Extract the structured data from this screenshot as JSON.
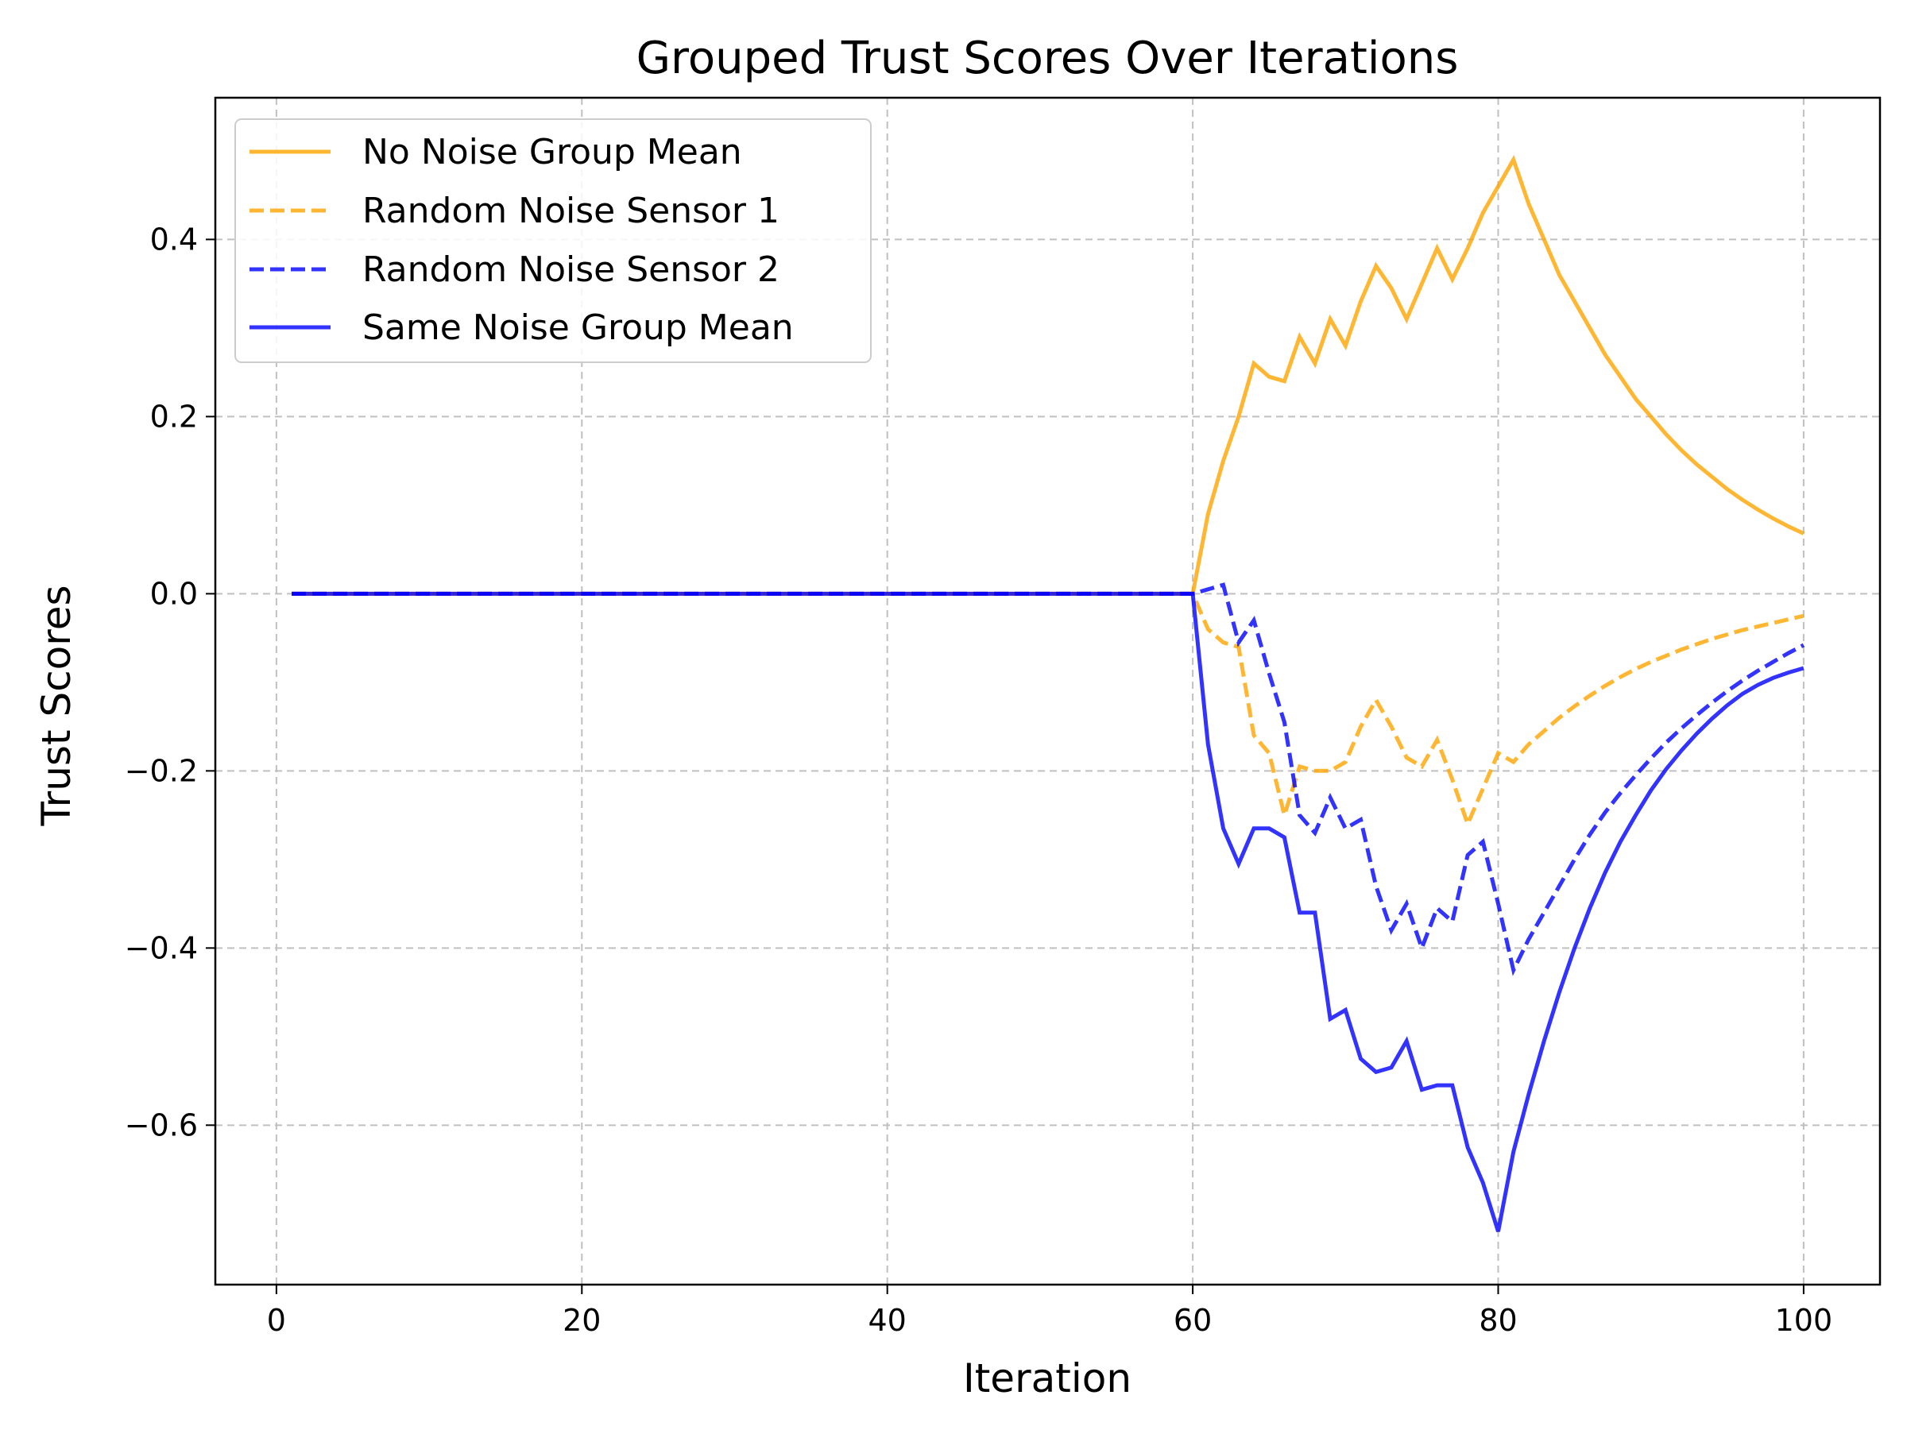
{
  "chart_data": {
    "type": "line",
    "title": "Grouped Trust Scores Over Iterations",
    "xlabel": "Iteration",
    "ylabel": "Trust Scores",
    "xlim": [
      -4,
      105
    ],
    "ylim": [
      -0.78,
      0.56
    ],
    "xticks": [
      0,
      20,
      40,
      60,
      80,
      100
    ],
    "xtick_labels": [
      "0",
      "20",
      "40",
      "60",
      "80",
      "100"
    ],
    "yticks": [
      -0.6,
      -0.4,
      -0.2,
      0.0,
      0.2,
      0.4
    ],
    "ytick_labels": [
      "−0.6",
      "−0.4",
      "−0.2",
      "0.0",
      "0.2",
      "0.4"
    ],
    "grid": true,
    "legend_position": "top-left",
    "series": [
      {
        "name": "No Noise Group Mean",
        "color": "#FFA500",
        "dashed": false,
        "points": [
          [
            1,
            0
          ],
          [
            60,
            0
          ],
          [
            61,
            0.09
          ],
          [
            62,
            0.15
          ],
          [
            63,
            0.2
          ],
          [
            64,
            0.26
          ],
          [
            65,
            0.245
          ],
          [
            66,
            0.24
          ],
          [
            67,
            0.29
          ],
          [
            68,
            0.26
          ],
          [
            69,
            0.31
          ],
          [
            70,
            0.28
          ],
          [
            71,
            0.33
          ],
          [
            72,
            0.37
          ],
          [
            73,
            0.345
          ],
          [
            74,
            0.31
          ],
          [
            75,
            0.35
          ],
          [
            76,
            0.39
          ],
          [
            77,
            0.355
          ],
          [
            78,
            0.39
          ],
          [
            79,
            0.43
          ],
          [
            80,
            0.46
          ],
          [
            81,
            0.49
          ],
          [
            82,
            0.44
          ],
          [
            83,
            0.4
          ],
          [
            84,
            0.36
          ],
          [
            85,
            0.33
          ],
          [
            86,
            0.3
          ],
          [
            87,
            0.27
          ],
          [
            88,
            0.245
          ],
          [
            89,
            0.22
          ],
          [
            90,
            0.2
          ],
          [
            91,
            0.18
          ],
          [
            92,
            0.162
          ],
          [
            93,
            0.146
          ],
          [
            94,
            0.132
          ],
          [
            95,
            0.118
          ],
          [
            96,
            0.106
          ],
          [
            97,
            0.095
          ],
          [
            98,
            0.085
          ],
          [
            99,
            0.076
          ],
          [
            100,
            0.068
          ]
        ]
      },
      {
        "name": "Random Noise Sensor 1",
        "color": "#FFA500",
        "dashed": true,
        "points": [
          [
            1,
            0
          ],
          [
            60,
            0
          ],
          [
            61,
            -0.04
          ],
          [
            62,
            -0.055
          ],
          [
            63,
            -0.06
          ],
          [
            64,
            -0.16
          ],
          [
            65,
            -0.18
          ],
          [
            66,
            -0.25
          ],
          [
            67,
            -0.195
          ],
          [
            68,
            -0.2
          ],
          [
            69,
            -0.2
          ],
          [
            70,
            -0.19
          ],
          [
            71,
            -0.15
          ],
          [
            72,
            -0.12
          ],
          [
            73,
            -0.15
          ],
          [
            74,
            -0.185
          ],
          [
            75,
            -0.195
          ],
          [
            76,
            -0.165
          ],
          [
            77,
            -0.21
          ],
          [
            78,
            -0.26
          ],
          [
            79,
            -0.22
          ],
          [
            80,
            -0.18
          ],
          [
            81,
            -0.19
          ],
          [
            82,
            -0.17
          ],
          [
            83,
            -0.155
          ],
          [
            84,
            -0.14
          ],
          [
            85,
            -0.127
          ],
          [
            86,
            -0.115
          ],
          [
            87,
            -0.104
          ],
          [
            88,
            -0.094
          ],
          [
            89,
            -0.085
          ],
          [
            90,
            -0.077
          ],
          [
            91,
            -0.07
          ],
          [
            92,
            -0.063
          ],
          [
            93,
            -0.057
          ],
          [
            94,
            -0.051
          ],
          [
            95,
            -0.046
          ],
          [
            96,
            -0.041
          ],
          [
            97,
            -0.037
          ],
          [
            98,
            -0.033
          ],
          [
            99,
            -0.029
          ],
          [
            100,
            -0.025
          ]
        ]
      },
      {
        "name": "Random Noise Sensor 2",
        "color": "#0000FF",
        "dashed": true,
        "points": [
          [
            1,
            0
          ],
          [
            60,
            0
          ],
          [
            61,
            0.005
          ],
          [
            62,
            0.01
          ],
          [
            63,
            -0.055
          ],
          [
            64,
            -0.03
          ],
          [
            65,
            -0.09
          ],
          [
            66,
            -0.145
          ],
          [
            67,
            -0.25
          ],
          [
            68,
            -0.27
          ],
          [
            69,
            -0.23
          ],
          [
            70,
            -0.265
          ],
          [
            71,
            -0.255
          ],
          [
            72,
            -0.33
          ],
          [
            73,
            -0.38
          ],
          [
            74,
            -0.35
          ],
          [
            75,
            -0.4
          ],
          [
            76,
            -0.355
          ],
          [
            77,
            -0.37
          ],
          [
            78,
            -0.295
          ],
          [
            79,
            -0.28
          ],
          [
            80,
            -0.35
          ],
          [
            81,
            -0.425
          ],
          [
            82,
            -0.39
          ],
          [
            83,
            -0.36
          ],
          [
            84,
            -0.33
          ],
          [
            85,
            -0.3
          ],
          [
            86,
            -0.272
          ],
          [
            87,
            -0.247
          ],
          [
            88,
            -0.225
          ],
          [
            89,
            -0.205
          ],
          [
            90,
            -0.186
          ],
          [
            91,
            -0.168
          ],
          [
            92,
            -0.152
          ],
          [
            93,
            -0.137
          ],
          [
            94,
            -0.123
          ],
          [
            95,
            -0.11
          ],
          [
            96,
            -0.098
          ],
          [
            97,
            -0.087
          ],
          [
            98,
            -0.077
          ],
          [
            99,
            -0.067
          ],
          [
            100,
            -0.058
          ]
        ]
      },
      {
        "name": "Same Noise Group Mean",
        "color": "#0000FF",
        "dashed": false,
        "points": [
          [
            1,
            0
          ],
          [
            60,
            0
          ],
          [
            61,
            -0.17
          ],
          [
            62,
            -0.265
          ],
          [
            63,
            -0.305
          ],
          [
            64,
            -0.265
          ],
          [
            65,
            -0.265
          ],
          [
            66,
            -0.275
          ],
          [
            67,
            -0.36
          ],
          [
            68,
            -0.36
          ],
          [
            69,
            -0.48
          ],
          [
            70,
            -0.47
          ],
          [
            71,
            -0.525
          ],
          [
            72,
            -0.54
          ],
          [
            73,
            -0.535
          ],
          [
            74,
            -0.505
          ],
          [
            75,
            -0.56
          ],
          [
            76,
            -0.555
          ],
          [
            77,
            -0.555
          ],
          [
            78,
            -0.625
          ],
          [
            79,
            -0.665
          ],
          [
            80,
            -0.72
          ],
          [
            81,
            -0.63
          ],
          [
            82,
            -0.565
          ],
          [
            83,
            -0.505
          ],
          [
            84,
            -0.45
          ],
          [
            85,
            -0.4
          ],
          [
            86,
            -0.355
          ],
          [
            87,
            -0.315
          ],
          [
            88,
            -0.28
          ],
          [
            89,
            -0.25
          ],
          [
            90,
            -0.222
          ],
          [
            91,
            -0.198
          ],
          [
            92,
            -0.177
          ],
          [
            93,
            -0.158
          ],
          [
            94,
            -0.141
          ],
          [
            95,
            -0.126
          ],
          [
            96,
            -0.113
          ],
          [
            97,
            -0.103
          ],
          [
            98,
            -0.095
          ],
          [
            99,
            -0.089
          ],
          [
            100,
            -0.084
          ]
        ]
      }
    ]
  }
}
